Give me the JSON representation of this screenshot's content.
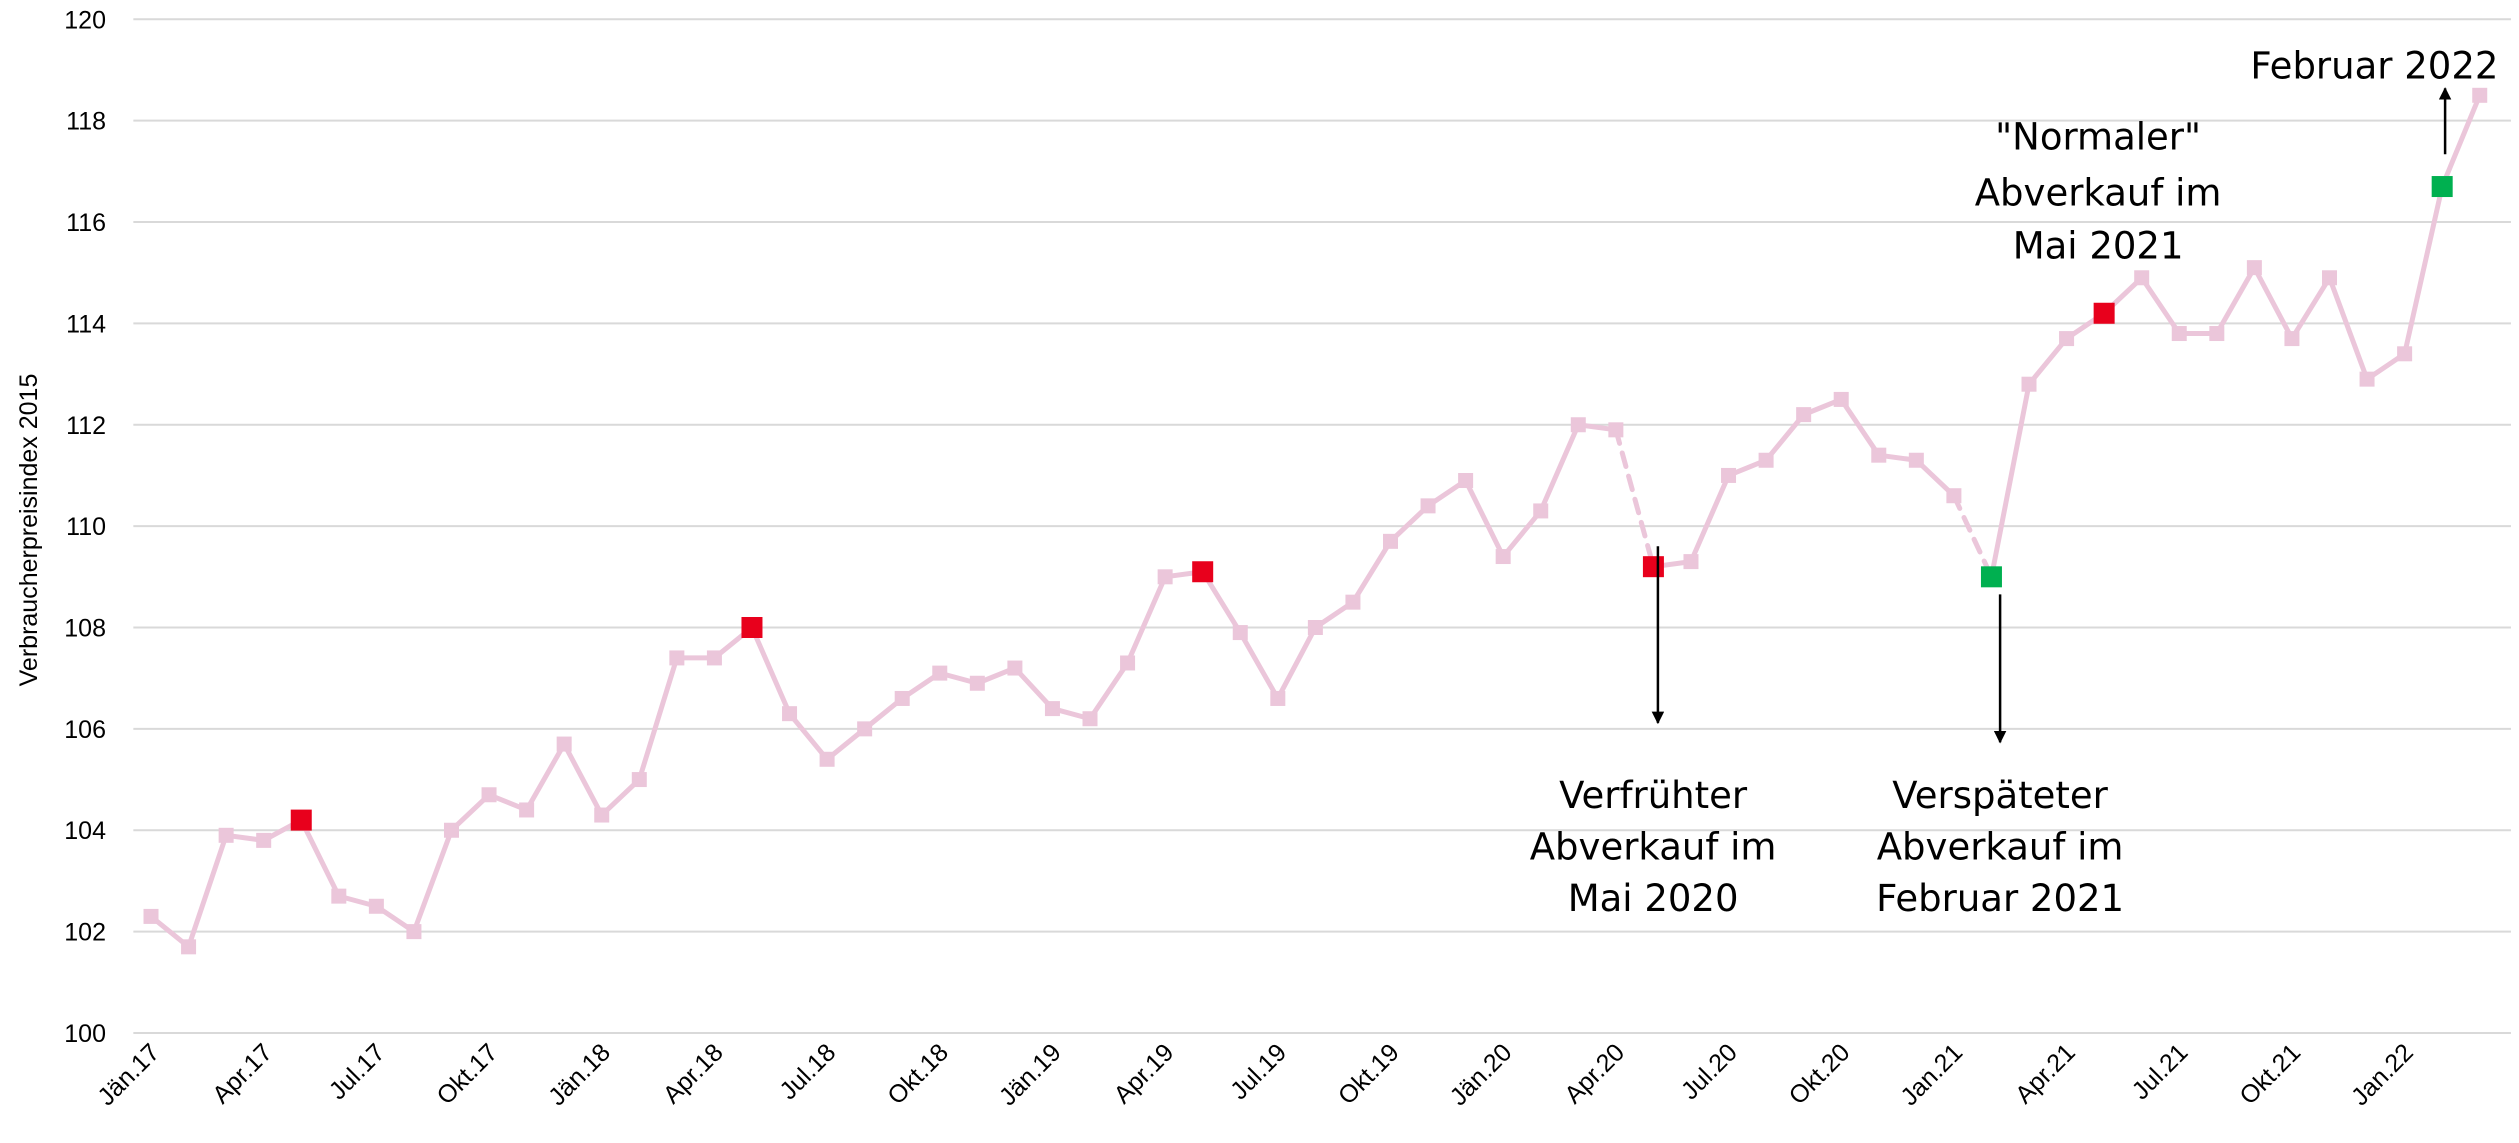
{
  "chart_data": {
    "type": "line",
    "y_label": "Verbraucherpreisindex 2015",
    "categories": [
      "Jän.17",
      null,
      null,
      "Apr.17",
      null,
      null,
      "Jul.17",
      null,
      null,
      "Okt.17",
      null,
      null,
      "Jän.18",
      null,
      null,
      "Apr.18",
      null,
      null,
      "Jul.18",
      null,
      null,
      "Okt.18",
      null,
      null,
      "Jän.19",
      null,
      null,
      "Apr.19",
      null,
      null,
      "Jul.19",
      null,
      null,
      "Okt.19",
      null,
      null,
      "Jän.20",
      null,
      null,
      "Apr.20",
      null,
      null,
      "Jul.20",
      null,
      null,
      "Okt.20",
      null,
      null,
      "Jan.21",
      null,
      null,
      "Apr.21",
      null,
      null,
      "Jul.21",
      null,
      null,
      "Okt.21",
      null,
      null,
      "Jan.22",
      null,
      null
    ],
    "series": [
      {
        "color": "#ebc6da",
        "values": [
          102.3,
          101.7,
          103.9,
          103.8,
          104.2,
          102.7,
          102.5,
          102.0,
          104.0,
          104.7,
          104.4,
          105.7,
          104.3,
          105.0,
          107.4,
          107.4,
          108.0,
          106.3,
          105.4,
          106.0,
          106.6,
          107.1,
          106.9,
          107.2,
          106.4,
          106.2,
          107.3,
          109.0,
          109.1,
          107.9,
          106.6,
          108.0,
          108.5,
          109.7,
          110.4,
          110.9,
          109.4,
          110.3,
          112.0,
          111.9,
          109.2,
          109.3,
          111.0,
          111.3,
          112.2,
          112.5,
          111.4,
          111.3,
          110.6,
          109.0,
          112.8,
          113.7,
          114.2,
          114.9,
          113.8,
          113.8,
          115.1,
          113.7,
          114.9,
          112.9,
          113.4,
          116.7,
          118.5
        ]
      }
    ],
    "highlights": [
      {
        "index": 4,
        "color": "#e8001c"
      },
      {
        "index": 16,
        "color": "#e8001c"
      },
      {
        "index": 28,
        "color": "#e8001c"
      },
      {
        "index": 40,
        "color": "#e8001c"
      },
      {
        "index": 49,
        "color": "#00b050"
      },
      {
        "index": 52,
        "color": "#e8001c"
      },
      {
        "index": 61,
        "color": "#00b050"
      }
    ],
    "dashed_segments": [
      [
        39,
        40
      ],
      [
        48,
        49
      ]
    ],
    "annotations": [
      {
        "index": 40,
        "lines": [
          "Verfrühter",
          "Abverkauf im",
          "Mai 2020"
        ]
      },
      {
        "index": 49,
        "lines": [
          "Verspäteter",
          "Abverkauf im",
          "Februar 2021"
        ]
      },
      {
        "index": 52,
        "lines": [
          "\"Normaler\"",
          "Abverkauf im",
          "Mai 2021"
        ]
      },
      {
        "index": 61,
        "lines": [
          "Februar 2022"
        ]
      }
    ],
    "ylim": [
      100,
      120
    ],
    "yticks": [
      100,
      102,
      104,
      106,
      108,
      110,
      112,
      114,
      116,
      118,
      120
    ],
    "grid": true
  }
}
